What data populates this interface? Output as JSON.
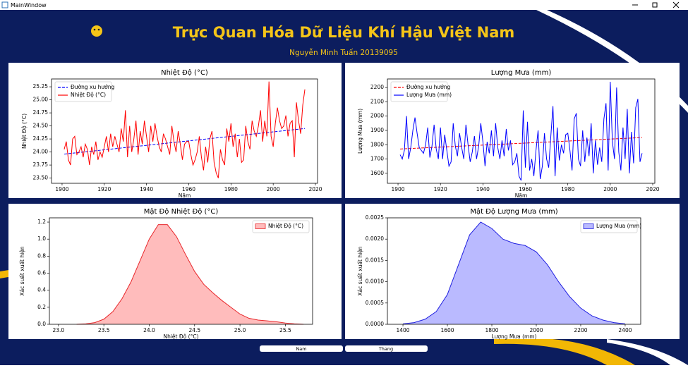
{
  "window": {
    "title": "MainWindow"
  },
  "header": {
    "title": "Trực Quan Hóa Dữ Liệu Khí Hậu Việt Nam",
    "subtitle": "Nguyễn Minh Tuấn 20139095"
  },
  "buttons": [
    "Nam",
    "Thang"
  ],
  "chart_data": [
    {
      "type": "line",
      "title": "Nhiệt Độ (°C)",
      "xlabel": "Năm",
      "ylabel": "Nhiệt Độ (°C)",
      "legend": "upper left",
      "xlim": [
        1895,
        2021
      ],
      "xticks": [
        1900,
        1920,
        1940,
        1960,
        1980,
        2000,
        2020
      ],
      "ylim": [
        23.4,
        25.4
      ],
      "yticks": [
        {
          "value": 23.5,
          "label": "23.50"
        },
        23.75,
        {
          "value": 24,
          "label": "24.00"
        },
        24.25,
        {
          "value": 24.5,
          "label": "24.50"
        },
        24.75,
        {
          "value": 25,
          "label": "25.00"
        },
        25.25
      ],
      "series": [
        {
          "name": "Đường xu hướng",
          "color": "#0000ff",
          "linestyle": "dashed",
          "x": [
            1901,
            2015
          ],
          "values": [
            23.96,
            24.45
          ]
        },
        {
          "name": "Nhiệt Độ (°C)",
          "color": "#ff0000",
          "linestyle": "solid",
          "x": [
            1901,
            1902,
            1903,
            1904,
            1905,
            1906,
            1907,
            1908,
            1909,
            1910,
            1911,
            1912,
            1913,
            1914,
            1915,
            1916,
            1917,
            1918,
            1919,
            1920,
            1921,
            1922,
            1923,
            1924,
            1925,
            1926,
            1927,
            1928,
            1929,
            1930,
            1931,
            1932,
            1933,
            1934,
            1935,
            1936,
            1937,
            1938,
            1939,
            1940,
            1941,
            1942,
            1943,
            1944,
            1945,
            1946,
            1947,
            1948,
            1949,
            1950,
            1951,
            1952,
            1953,
            1954,
            1955,
            1956,
            1957,
            1958,
            1959,
            1960,
            1961,
            1962,
            1963,
            1964,
            1965,
            1966,
            1967,
            1968,
            1969,
            1970,
            1971,
            1972,
            1973,
            1974,
            1975,
            1976,
            1977,
            1978,
            1979,
            1980,
            1981,
            1982,
            1983,
            1984,
            1985,
            1986,
            1987,
            1988,
            1989,
            1990,
            1991,
            1992,
            1993,
            1994,
            1995,
            1996,
            1997,
            1998,
            1999,
            2000,
            2001,
            2002,
            2003,
            2004,
            2005,
            2006,
            2007,
            2008,
            2009,
            2010,
            2011,
            2012,
            2013,
            2014,
            2015
          ],
          "values": [
            24.05,
            24.2,
            23.85,
            23.75,
            24.25,
            24.3,
            23.95,
            24.0,
            24.1,
            23.9,
            24.15,
            24.05,
            23.75,
            24.1,
            23.95,
            24.2,
            23.85,
            24.0,
            23.9,
            24.1,
            24.3,
            24.0,
            24.35,
            24.1,
            24.3,
            24.15,
            24.0,
            24.45,
            24.2,
            24.8,
            23.9,
            24.5,
            24.0,
            24.25,
            24.6,
            23.95,
            24.4,
            24.15,
            24.6,
            24.3,
            24.0,
            24.5,
            24.2,
            24.55,
            24.3,
            24.1,
            24.0,
            24.35,
            24.25,
            24.1,
            23.95,
            24.5,
            24.2,
            24.0,
            24.4,
            24.15,
            23.85,
            24.15,
            24.2,
            24.2,
            23.95,
            23.75,
            23.85,
            24.0,
            24.3,
            23.9,
            23.65,
            24.1,
            23.8,
            24.25,
            24.4,
            23.8,
            23.6,
            23.5,
            24.05,
            23.85,
            23.75,
            24.45,
            24.2,
            24.55,
            24.1,
            24.35,
            23.9,
            24.25,
            23.8,
            23.85,
            24.5,
            24.2,
            24.05,
            24.6,
            24.4,
            24.3,
            24.5,
            24.8,
            24.2,
            24.6,
            24.3,
            25.35,
            24.3,
            24.1,
            24.55,
            24.85,
            24.6,
            24.45,
            24.5,
            24.7,
            24.3,
            24.55,
            24.6,
            23.9,
            24.95,
            24.6,
            24.35,
            24.9,
            25.2
          ]
        }
      ]
    },
    {
      "type": "line",
      "title": "Lượng Mưa (mm)",
      "xlabel": "Năm",
      "ylabel": "Lượng Mưa (mm)",
      "legend": "upper left",
      "xlim": [
        1895,
        2021
      ],
      "xticks": [
        1900,
        1920,
        1940,
        1960,
        1980,
        2000,
        2020
      ],
      "ylim": [
        1530,
        2260
      ],
      "yticks": [
        1600,
        1700,
        1800,
        1900,
        2000,
        2100,
        2200
      ],
      "series": [
        {
          "name": "Đường xu hướng",
          "color": "#ff0000",
          "linestyle": "dashed",
          "x": [
            1901,
            2015
          ],
          "values": [
            1770,
            1850
          ]
        },
        {
          "name": "Lượng Mưa (mm)",
          "color": "#0000ff",
          "linestyle": "solid",
          "x": [
            1901,
            1902,
            1903,
            1904,
            1905,
            1906,
            1907,
            1908,
            1909,
            1910,
            1911,
            1912,
            1913,
            1914,
            1915,
            1916,
            1917,
            1918,
            1919,
            1920,
            1921,
            1922,
            1923,
            1924,
            1925,
            1926,
            1927,
            1928,
            1929,
            1930,
            1931,
            1932,
            1933,
            1934,
            1935,
            1936,
            1937,
            1938,
            1939,
            1940,
            1941,
            1942,
            1943,
            1944,
            1945,
            1946,
            1947,
            1948,
            1949,
            1950,
            1951,
            1952,
            1953,
            1954,
            1955,
            1956,
            1957,
            1958,
            1959,
            1960,
            1961,
            1962,
            1963,
            1964,
            1965,
            1966,
            1967,
            1968,
            1969,
            1970,
            1971,
            1972,
            1973,
            1974,
            1975,
            1976,
            1977,
            1978,
            1979,
            1980,
            1981,
            1982,
            1983,
            1984,
            1985,
            1986,
            1987,
            1988,
            1989,
            1990,
            1991,
            1992,
            1993,
            1994,
            1995,
            1996,
            1997,
            1998,
            1999,
            2000,
            2001,
            2002,
            2003,
            2004,
            2005,
            2006,
            2007,
            2008,
            2009,
            2010,
            2011,
            2012,
            2013,
            2014,
            2015
          ],
          "values": [
            1730,
            1700,
            1760,
            2000,
            1700,
            1780,
            1900,
            1990,
            1880,
            1780,
            1760,
            1740,
            1800,
            1920,
            1710,
            1790,
            1940,
            1770,
            1700,
            1920,
            1700,
            1870,
            1760,
            1650,
            1680,
            1950,
            1790,
            1720,
            1880,
            1780,
            1700,
            1940,
            1800,
            1680,
            1750,
            1860,
            1700,
            1790,
            1950,
            1820,
            1650,
            1820,
            1740,
            1900,
            1720,
            1950,
            1780,
            1700,
            1830,
            1720,
            1910,
            1760,
            1830,
            1660,
            1680,
            1740,
            1580,
            1550,
            2040,
            1640,
            1960,
            1620,
            1700,
            1580,
            1760,
            1900,
            1560,
            1650,
            1880,
            1700,
            1640,
            1860,
            2070,
            1580,
            1920,
            1690,
            1800,
            1740,
            1870,
            1880,
            1760,
            1620,
            1980,
            2020,
            1700,
            1650,
            1900,
            1680,
            1850,
            1720,
            1950,
            1600,
            1830,
            1660,
            1780,
            1680,
            1980,
            2090,
            1620,
            2240,
            1820,
            1700,
            2200,
            1750,
            1620,
            1920,
            1700,
            2050,
            1600,
            1890,
            1670,
            2060,
            2120,
            1680,
            1740
          ]
        }
      ]
    },
    {
      "type": "area",
      "title": "Mật Độ Nhiệt Độ (°C)",
      "xlabel": "Nhiệt Độ (°C)",
      "ylabel": "Xác suất xuất hiện",
      "legend": "upper right",
      "xlim": [
        22.9,
        25.8
      ],
      "xticks": [
        {
          "value": 23,
          "label": "23.0"
        },
        23.5,
        {
          "value": 24,
          "label": "24.0"
        },
        24.5,
        {
          "value": 25,
          "label": "25.0"
        },
        25.5
      ],
      "ylim": [
        0,
        1.25
      ],
      "yticks": [
        {
          "value": 0,
          "label": "0.0"
        },
        0.2,
        0.4,
        0.6,
        0.8,
        {
          "value": 1,
          "label": "1.0"
        },
        1.2
      ],
      "series": [
        {
          "name": "Nhiệt Độ (°C)",
          "color": "#e8262a",
          "fill_color": "#ffbcbc",
          "x": [
            23.2,
            23.3,
            23.4,
            23.5,
            23.6,
            23.7,
            23.8,
            23.9,
            24.0,
            24.1,
            24.2,
            24.3,
            24.4,
            24.5,
            24.6,
            24.7,
            24.8,
            24.9,
            25.0,
            25.1,
            25.2,
            25.3,
            25.4,
            25.5,
            25.6,
            25.7
          ],
          "values": [
            0.0,
            0.005,
            0.02,
            0.06,
            0.15,
            0.3,
            0.5,
            0.75,
            1.0,
            1.17,
            1.17,
            1.03,
            0.82,
            0.62,
            0.47,
            0.37,
            0.28,
            0.2,
            0.12,
            0.07,
            0.05,
            0.04,
            0.03,
            0.015,
            0.005,
            0.0
          ]
        }
      ]
    },
    {
      "type": "area",
      "title": "Mật Độ Lượng Mưa (mm)",
      "xlabel": "Lượng Mưa (mm)",
      "ylabel": "Xác suất xuất hiện",
      "legend": "upper right",
      "xlim": [
        1330,
        2470
      ],
      "xticks": [
        1400,
        1600,
        1800,
        2000,
        2200,
        2400
      ],
      "ylim": [
        0,
        0.0025
      ],
      "yticks": [
        {
          "value": 0,
          "label": "0.0000"
        },
        {
          "value": 0.0005,
          "label": "0.0005"
        },
        {
          "value": 0.001,
          "label": "0.0010"
        },
        {
          "value": 0.0015,
          "label": "0.0015"
        },
        {
          "value": 0.002,
          "label": "0.0020"
        },
        {
          "value": 0.0025,
          "label": "0.0025"
        }
      ],
      "series": [
        {
          "name": "Lượng Mưa (mm)",
          "color": "#2020e0",
          "fill_color": "#babaff",
          "x": [
            1400,
            1450,
            1500,
            1550,
            1600,
            1650,
            1700,
            1750,
            1800,
            1850,
            1900,
            1950,
            2000,
            2050,
            2100,
            2150,
            2200,
            2250,
            2300,
            2350,
            2400
          ],
          "values": [
            1e-05,
            4e-05,
            0.00012,
            0.0003,
            0.0007,
            0.0014,
            0.0021,
            0.0024,
            0.00225,
            0.002,
            0.0019,
            0.00185,
            0.0017,
            0.0014,
            0.001,
            0.00065,
            0.00038,
            0.0002,
            0.0001,
            4e-05,
            1e-05
          ]
        }
      ]
    }
  ]
}
